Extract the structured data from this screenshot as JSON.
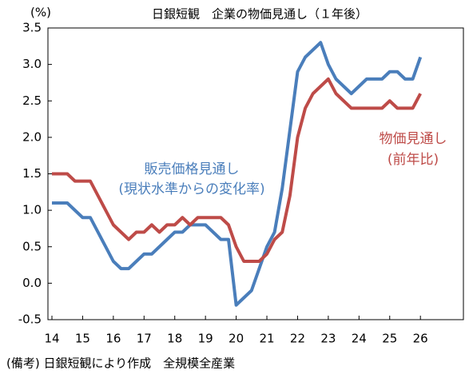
{
  "chart_data": {
    "type": "line",
    "title": "日銀短観　企業の物価見通し（１年後）",
    "y_unit": "(%)",
    "footnote": "(備考) 日銀短観により作成　全規模全産業",
    "annotations": [
      "(現状水準からの変化率)",
      "(前年比)"
    ],
    "x": [
      14,
      14.25,
      14.5,
      14.75,
      15,
      15.25,
      15.5,
      15.75,
      16,
      16.25,
      16.5,
      16.75,
      17,
      17.25,
      17.5,
      17.75,
      18,
      18.25,
      18.5,
      18.75,
      19,
      19.25,
      19.5,
      19.75,
      20,
      20.25,
      20.5,
      20.75,
      21,
      21.25,
      21.5,
      21.75,
      22,
      22.25,
      22.5,
      22.75,
      23,
      23.25,
      23.5,
      23.75,
      24,
      24.25,
      24.5,
      24.75,
      25,
      25.25,
      25.5,
      25.75,
      26
    ],
    "series": [
      {
        "name": "販売価格見通し",
        "color": "#4a7ebb",
        "values": [
          1.1,
          1.1,
          1.1,
          1.0,
          0.9,
          0.9,
          0.7,
          0.5,
          0.3,
          0.2,
          0.2,
          0.3,
          0.4,
          0.4,
          0.5,
          0.6,
          0.7,
          0.7,
          0.8,
          0.8,
          0.8,
          0.7,
          0.6,
          0.6,
          -0.3,
          -0.2,
          -0.1,
          0.2,
          0.5,
          0.7,
          1.3,
          2.1,
          2.9,
          3.1,
          3.2,
          3.3,
          3.0,
          2.8,
          2.7,
          2.6,
          2.7,
          2.8,
          2.8,
          2.8,
          2.9,
          2.9,
          2.8,
          2.8,
          3.1
        ]
      },
      {
        "name": "物価見通し",
        "color": "#be4b48",
        "values": [
          1.5,
          1.5,
          1.5,
          1.4,
          1.4,
          1.4,
          1.2,
          1.0,
          0.8,
          0.7,
          0.6,
          0.7,
          0.7,
          0.8,
          0.7,
          0.8,
          0.8,
          0.9,
          0.8,
          0.9,
          0.9,
          0.9,
          0.9,
          0.8,
          0.5,
          0.3,
          0.3,
          0.3,
          0.4,
          0.6,
          0.7,
          1.2,
          2.0,
          2.4,
          2.6,
          2.7,
          2.8,
          2.6,
          2.5,
          2.4,
          2.4,
          2.4,
          2.4,
          2.4,
          2.5,
          2.4,
          2.4,
          2.4,
          2.6
        ]
      }
    ],
    "xlim": [
      13.87,
      27.4
    ],
    "xticks": [
      14,
      15,
      16,
      17,
      18,
      19,
      20,
      21,
      22,
      23,
      24,
      25,
      26
    ],
    "ylim": [
      -0.5,
      3.5
    ],
    "yticks": [
      -0.5,
      {
        "value": 0,
        "label": "0.0"
      },
      0.5,
      {
        "value": 1,
        "label": "1.0"
      },
      1.5,
      {
        "value": 2,
        "label": "2.0"
      },
      2.5,
      {
        "value": 3,
        "label": "3.0"
      },
      3.5
    ],
    "grid": false
  }
}
